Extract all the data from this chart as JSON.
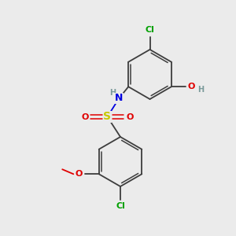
{
  "background_color": "#ebebeb",
  "atom_colors": {
    "C": "#3d3d3d",
    "H": "#7a9a9a",
    "N": "#0000e0",
    "O": "#e00000",
    "S": "#c8c800",
    "Cl": "#00a000"
  },
  "figsize": [
    3.0,
    3.0
  ],
  "dpi": 100,
  "xlim": [
    0,
    10
  ],
  "ylim": [
    0,
    10
  ]
}
